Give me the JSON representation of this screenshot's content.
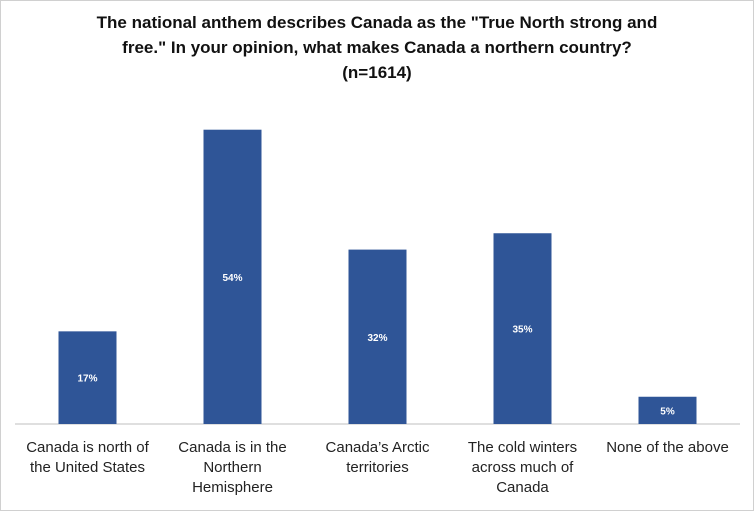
{
  "chart_data": {
    "type": "bar",
    "title": [
      "The national anthem describes Canada as the \"True North strong and",
      "free.\" In your opinion, what makes Canada a northern country?",
      "(n=1614)"
    ],
    "categories": [
      "Canada is north of the United States",
      "Canada is in the Northern Hemisphere",
      "Canada’s Arctic territories",
      "The cold winters across much of Canada",
      "None of the above"
    ],
    "values": [
      17,
      54,
      32,
      35,
      5
    ],
    "value_labels": [
      "17%",
      "54%",
      "32%",
      "35%",
      "5%"
    ],
    "color": "#2f5597"
  }
}
